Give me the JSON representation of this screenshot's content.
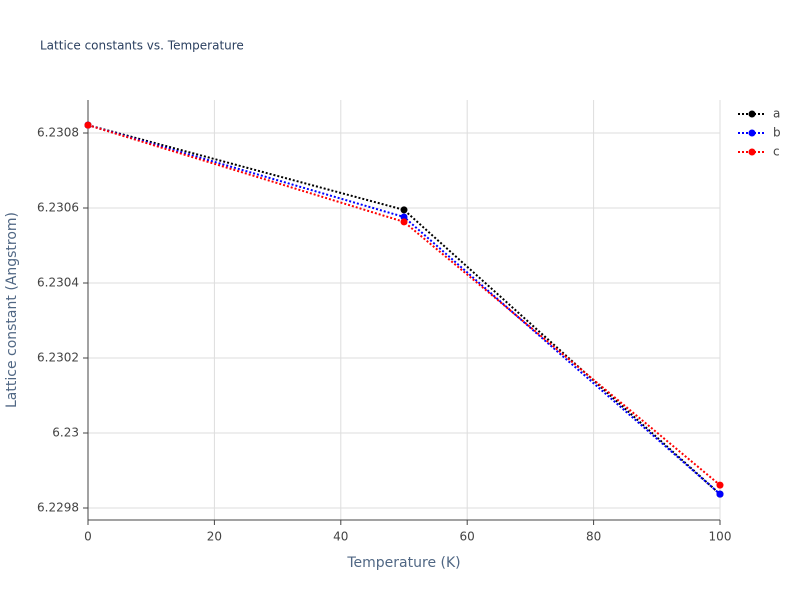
{
  "chart_data": {
    "type": "line",
    "title": "Lattice constants vs. Temperature",
    "x_label": "Temperature (K)",
    "y_label": "Lattice constant (Angstrom)",
    "x": [
      0,
      50,
      100
    ],
    "series": [
      {
        "name": "a",
        "color": "#000000",
        "values": [
          6.230821,
          6.230595,
          6.229837
        ]
      },
      {
        "name": "b",
        "color": "#0000ff",
        "values": [
          6.230821,
          6.230576,
          6.229837
        ]
      },
      {
        "name": "c",
        "color": "#ff0000",
        "values": [
          6.230821,
          6.230563,
          6.229861
        ]
      }
    ],
    "xlim": [
      0,
      100
    ],
    "xticks": [
      0,
      20,
      40,
      60,
      80,
      100
    ],
    "ylim": [
      6.229768,
      6.230888
    ],
    "yticks": [
      6.2298,
      6.23,
      6.2302,
      6.2304,
      6.2306,
      6.2308
    ],
    "grid": true,
    "legend": "top-right"
  }
}
